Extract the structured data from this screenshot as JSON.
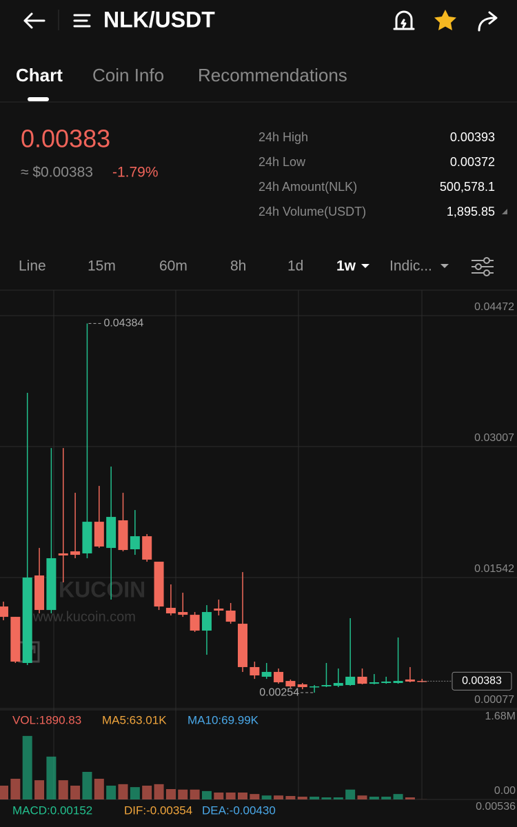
{
  "header": {
    "title": "NLK/USDT"
  },
  "tabs": [
    "Chart",
    "Coin Info",
    "Recommendations"
  ],
  "price": {
    "last": "0.00383",
    "usd": "≈ $0.00383",
    "change": "-1.79%"
  },
  "stats": [
    {
      "label": "24h High",
      "value": "0.00393"
    },
    {
      "label": "24h Low",
      "value": "0.00372"
    },
    {
      "label": "24h Amount(NLK)",
      "value": "500,578.1"
    },
    {
      "label": "24h Volume(USDT)",
      "value": "1,895.85"
    }
  ],
  "intervals": [
    "Line",
    "15m",
    "60m",
    "8h",
    "1d",
    "1w",
    "Indic..."
  ],
  "watermark": {
    "brand": "KUCOIN",
    "site": "www.kucoin.com"
  },
  "chart_data": {
    "type": "candlestick",
    "open": [
      0.01218,
      0.01102,
      0.00586,
      0.01565,
      0.01179,
      0.01812,
      0.01835,
      0.01812,
      0.02166,
      0.01873,
      0.02182,
      0.01858,
      0.02004,
      0.01719,
      0.01203,
      0.01156,
      0.01125,
      0.00948,
      0.01195,
      0.01172,
      0.01025,
      0.0054,
      0.00432,
      0.00486,
      0.00385,
      0.00347,
      0.00316,
      0.00324,
      0.00331,
      0.00339,
      0.00432,
      0.00354,
      0.00362,
      0.00362,
      0.00401,
      0.00385
    ],
    "high": [
      0.01272,
      0.01102,
      0.03608,
      0.01873,
      0.02991,
      0.02991,
      0.0249,
      0.04384,
      0.02567,
      0.02783,
      0.0249,
      0.02297,
      0.02028,
      0.01719,
      0.01465,
      0.01372,
      0.01156,
      0.01233,
      0.01295,
      0.01257,
      0.01603,
      0.00601,
      0.00586,
      0.00524,
      0.00401,
      0.00362,
      0.00339,
      0.00586,
      0.00524,
      0.01087,
      0.00524,
      0.00462,
      0.00432,
      0.00871,
      0.0054,
      0.00408
    ],
    "low": [
      0.01064,
      0.00586,
      0.00563,
      0.01141,
      0.01141,
      0.01488,
      0.01758,
      0.01758,
      0.01873,
      0.01295,
      0.01835,
      0.01796,
      0.01719,
      0.01179,
      0.01118,
      0.01102,
      0.00933,
      0.00678,
      0.01118,
      0.01025,
      0.00486,
      0.00408,
      0.00408,
      0.00354,
      0.00308,
      0.00292,
      0.00254,
      0.00316,
      0.00316,
      0.00331,
      0.00347,
      0.00347,
      0.00354,
      0.00354,
      0.0037,
      0.0037
    ],
    "close": [
      0.01102,
      0.00601,
      0.01542,
      0.01179,
      0.01758,
      0.01789,
      0.01796,
      0.02166,
      0.01889,
      0.0222,
      0.0185,
      0.02004,
      0.01742,
      0.01218,
      0.01141,
      0.01125,
      0.00948,
      0.01156,
      0.01172,
      0.01048,
      0.0054,
      0.00447,
      0.00486,
      0.0037,
      0.00324,
      0.00316,
      0.00324,
      0.00339,
      0.00362,
      0.00432,
      0.00354,
      0.0037,
      0.00378,
      0.00385,
      0.00378,
      0.00383
    ],
    "up_color": "#22c08e",
    "down_color": "#f16a5b",
    "ylim": [
      0.00077,
      0.04472
    ],
    "yticks": [
      0.04472,
      0.03007,
      0.01542,
      0.00077
    ],
    "max_label": 0.04384,
    "min_label": 0.00254,
    "last_price": 0.00383,
    "volume": [
      280000,
      420000,
      1290000,
      390000,
      870000,
      390000,
      280000,
      560000,
      420000,
      280000,
      310000,
      250000,
      280000,
      310000,
      210000,
      200000,
      200000,
      170000,
      140000,
      140000,
      140000,
      110000,
      80000,
      80000,
      70000,
      56000,
      56000,
      42000,
      42000,
      200000,
      80000,
      56000,
      56000,
      110000,
      42000,
      1890.83
    ],
    "vlim": [
      0,
      1680000
    ],
    "vticks": [
      {
        "value": 1680000,
        "label": "1.68M"
      },
      {
        "value": 0,
        "label": "0.00"
      }
    ],
    "vol_indicators": [
      "VOL:1890.83",
      "MA5:63.01K",
      "MA10:69.99K"
    ],
    "macd_indicators": [
      "MACD:0.00152",
      "DIF:-0.00354",
      "DEA:-0.00430"
    ],
    "macd_axis_label": "0.00536"
  }
}
